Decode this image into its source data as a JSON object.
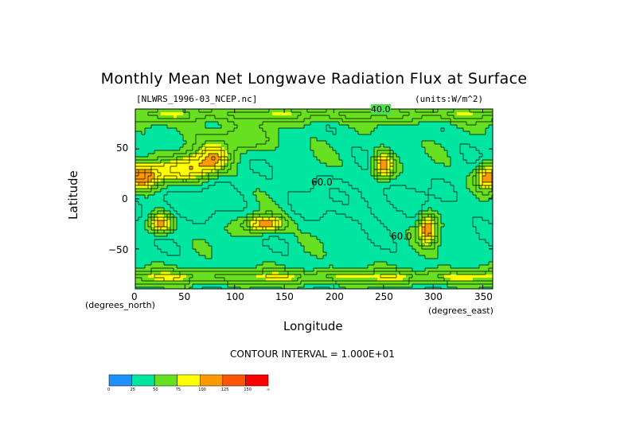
{
  "figure": {
    "title": "Monthly Mean Net Longwave Radiation Flux at Surface",
    "file_label": "[NLWRS_1996-03_NCEP.nc]",
    "units_label": "(units:W/m^2)",
    "contour_interval_text": "CONTOUR INTERVAL = 1.000E+01"
  },
  "chart_data": {
    "type": "heatmap",
    "title": "Monthly Mean Net Longwave Radiation Flux at Surface",
    "xlabel": "Longitude",
    "ylabel": "Latitude",
    "x_unit_label": "(degrees_east)",
    "y_unit_label": "(degrees_north)",
    "xlim": [
      0,
      360
    ],
    "ylim": [
      -90,
      90
    ],
    "x_ticks": [
      0,
      50,
      100,
      150,
      200,
      250,
      300,
      350
    ],
    "y_ticks": [
      -50,
      0,
      50
    ],
    "x_tick_labels": [
      "0",
      "50",
      "100",
      "150",
      "200",
      "250",
      "300",
      "350"
    ],
    "y_tick_labels": [
      "−50",
      "0",
      "50"
    ],
    "contour_labels": [
      "40.0",
      "60.0",
      "60.0"
    ],
    "colorbar": {
      "levels": [
        0,
        25,
        50,
        75,
        100,
        125,
        150
      ],
      "level_labels": [
        "0",
        "25",
        "50",
        "75",
        "100",
        "125",
        "150",
        "∞"
      ],
      "colors": [
        "#1e90ff",
        "#00e6a0",
        "#66e020",
        "#ffff00",
        "#ff9900",
        "#ff5500",
        "#ff0000"
      ]
    }
  }
}
